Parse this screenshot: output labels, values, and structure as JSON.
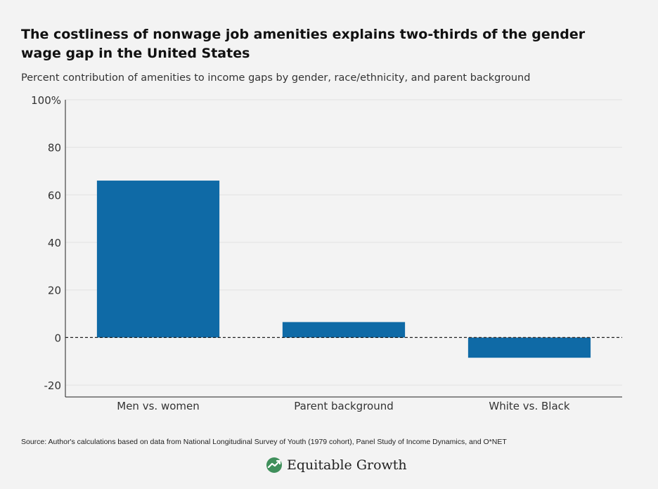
{
  "title": "The costliness of nonwage job amenities explains two-thirds of the gender wage gap in the United States",
  "subtitle": "Percent contribution of amenities to income gaps by gender, race/ethnicity, and parent background",
  "source": "Source: Author's calculations based on data from National Longitudinal Survey of Youth (1979 cohort), Panel Study of Income Dynamics, and O*NET",
  "logo_text": "Equitable Growth",
  "colors": {
    "bar": "#0f6aa6",
    "background": "#f3f3f3",
    "grid": "#e2e2e2"
  },
  "chart_data": {
    "type": "bar",
    "categories": [
      "Men vs. women",
      "Parent background",
      "White vs. Black"
    ],
    "values": [
      66,
      6.5,
      -8.5
    ],
    "ylim": [
      -25,
      100
    ],
    "yticks": [
      -20,
      0,
      20,
      40,
      60,
      80,
      100
    ],
    "ytick_labels": [
      "-20",
      "0",
      "20",
      "40",
      "60",
      "80",
      "100%"
    ],
    "xlabel": "",
    "ylabel": "",
    "grid": true,
    "zero_line": "dashed"
  }
}
